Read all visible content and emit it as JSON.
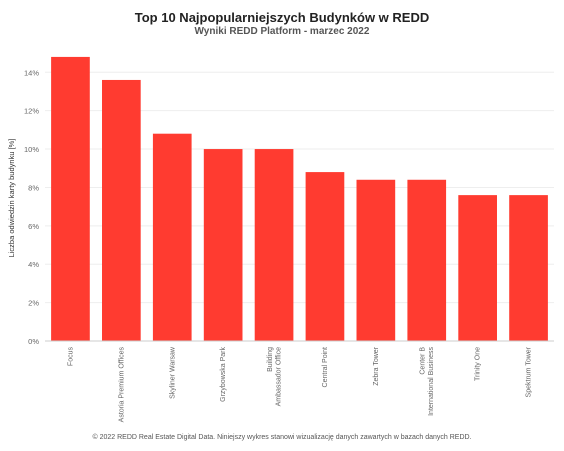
{
  "chart_data": {
    "type": "bar",
    "title": "Top 10 Najpopularniejszych Budynków w REDD",
    "subtitle": "Wyniki REDD Platform - marzec 2022",
    "ylabel": "Liczba odwiedzin karty budynku [%]",
    "xlabel": "",
    "categories": [
      [
        "Focus"
      ],
      [
        "Astoria Premium Offices"
      ],
      [
        "Skyliner Warsaw"
      ],
      [
        "Grzybowska Park"
      ],
      [
        "Ambassador Office",
        "Building"
      ],
      [
        "Central Point"
      ],
      [
        "Zebra Tower"
      ],
      [
        "International Business",
        "Center B"
      ],
      [
        "Trinity One"
      ],
      [
        "Spektrum Tower"
      ]
    ],
    "values": [
      14.8,
      13.6,
      10.8,
      10.0,
      10.0,
      8.8,
      8.4,
      8.4,
      7.6,
      7.6
    ],
    "ylim": [
      0,
      14.9
    ],
    "yticks": [
      0,
      2,
      4,
      6,
      8,
      10,
      12,
      14
    ],
    "ytick_labels": [
      "0%",
      "2%",
      "4%",
      "6%",
      "8%",
      "10%",
      "12%",
      "14%"
    ],
    "grid": true,
    "bar_color": "#ff3b30"
  },
  "footer": "© 2022 REDD Real Estate Digital Data. Niniejszy wykres stanowi wizualizację danych zawartych w bazach danych REDD."
}
